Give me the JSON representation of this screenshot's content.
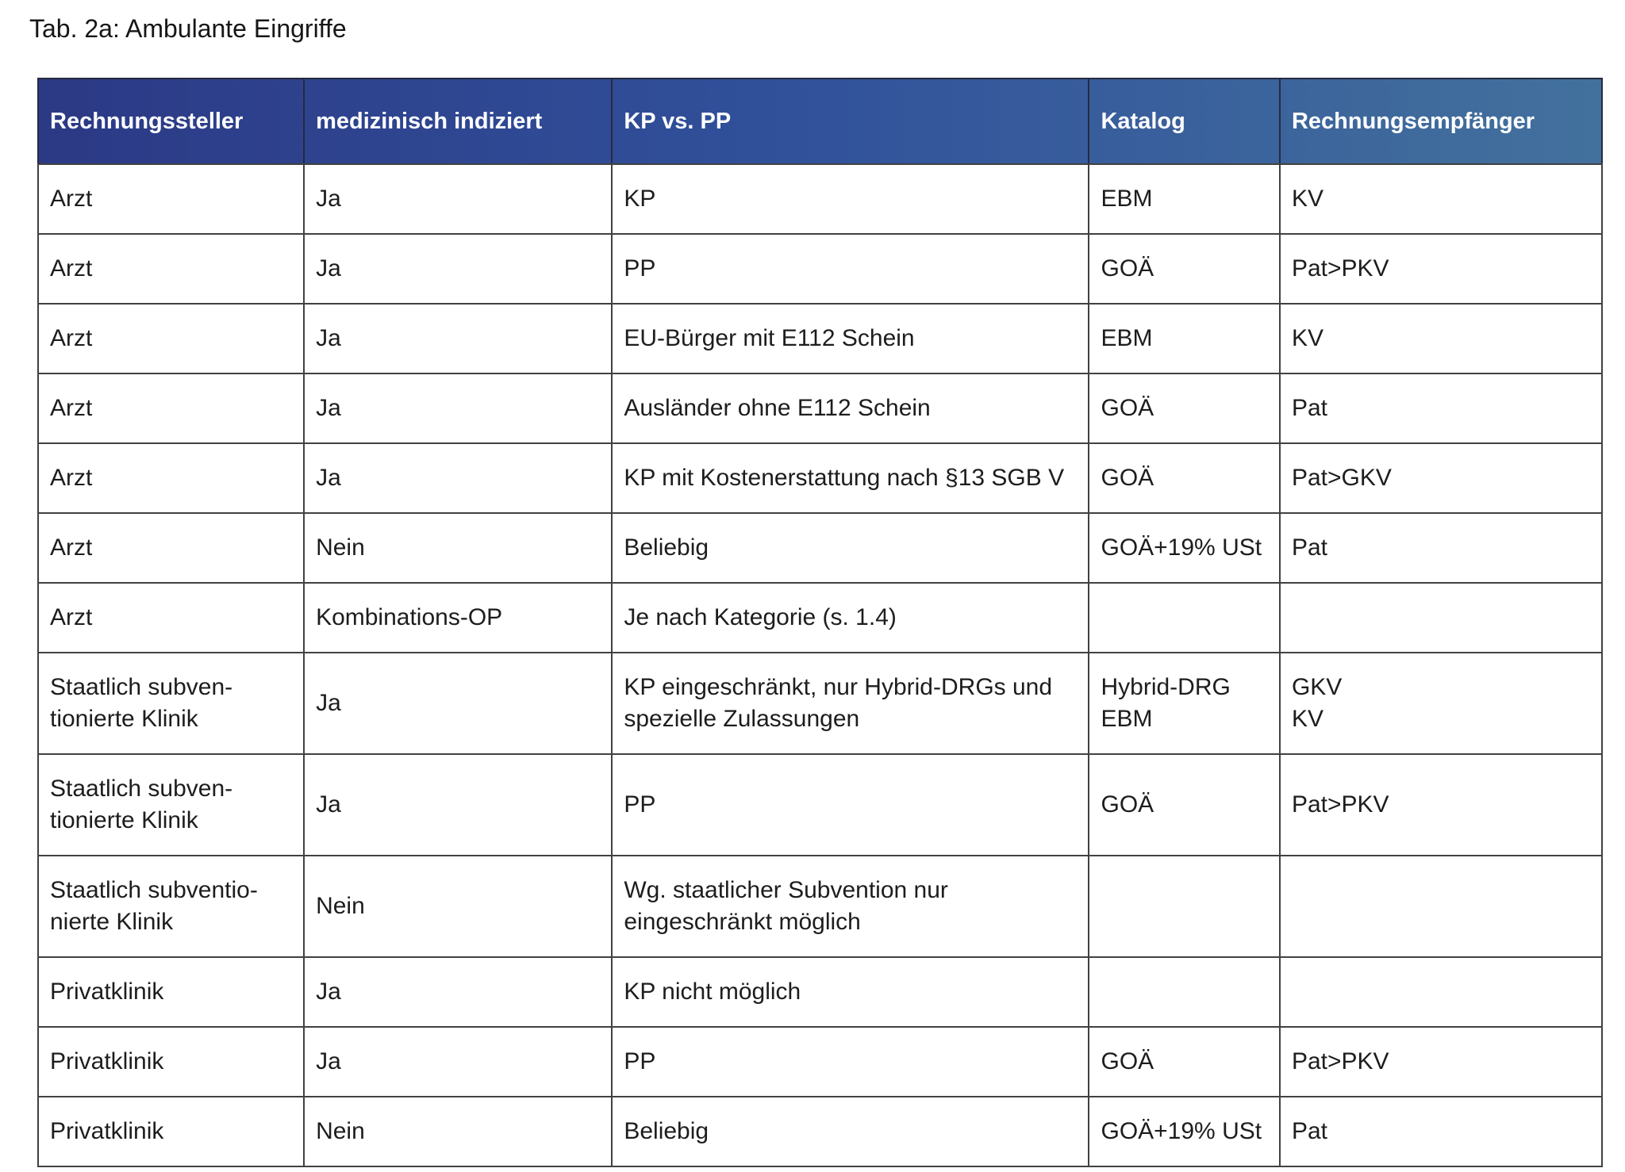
{
  "title": "Tab. 2a: Ambulante Eingriffe",
  "table": {
    "columns": [
      "Rechnungssteller",
      "medizinisch indiziert",
      "KP vs. PP",
      "Katalog",
      "Rechnungsempfänger"
    ],
    "rows": [
      [
        "Arzt",
        "Ja",
        "KP",
        "EBM",
        "KV"
      ],
      [
        "Arzt",
        "Ja",
        "PP",
        "GOÄ",
        "Pat>PKV"
      ],
      [
        "Arzt",
        "Ja",
        "EU-Bürger mit E112 Schein",
        "EBM",
        "KV"
      ],
      [
        "Arzt",
        "Ja",
        "Ausländer ohne E112 Schein",
        "GOÄ",
        "Pat"
      ],
      [
        "Arzt",
        "Ja",
        "KP mit Kostenerstattung nach §13 SGB V",
        "GOÄ",
        "Pat>GKV"
      ],
      [
        "Arzt",
        "Nein",
        "Beliebig",
        "GOÄ+19% USt",
        "Pat"
      ],
      [
        "Arzt",
        "Kombinations-OP",
        "Je nach Kategorie (s. 1.4)",
        "",
        ""
      ],
      [
        "Staatlich subven-\ntionierte Klinik",
        "Ja",
        "KP eingeschränkt, nur Hybrid-DRGs und spezielle Zulassungen",
        "Hybrid-DRG\nEBM",
        "GKV\nKV"
      ],
      [
        "Staatlich subven-\ntionierte Klinik",
        "Ja",
        "PP",
        "GOÄ",
        "Pat>PKV"
      ],
      [
        "Staatlich subventio-\nnierte Klinik",
        "Nein",
        "Wg. staatlicher Subvention nur eingeschränkt möglich",
        "",
        ""
      ],
      [
        "Privatklinik",
        "Ja",
        "KP nicht möglich",
        "",
        ""
      ],
      [
        "Privatklinik",
        "Ja",
        "PP",
        "GOÄ",
        "Pat>PKV"
      ],
      [
        "Privatklinik",
        "Nein",
        "Beliebig",
        "GOÄ+19% USt",
        "Pat"
      ]
    ]
  },
  "colors": {
    "header_gradient_start": "#2c3985",
    "header_gradient_mid": "#31519b",
    "header_gradient_end": "#43719d",
    "header_text": "#ffffff",
    "body_text": "#1d1d1d",
    "border": "#414141",
    "page_bg": "#ffffff"
  }
}
